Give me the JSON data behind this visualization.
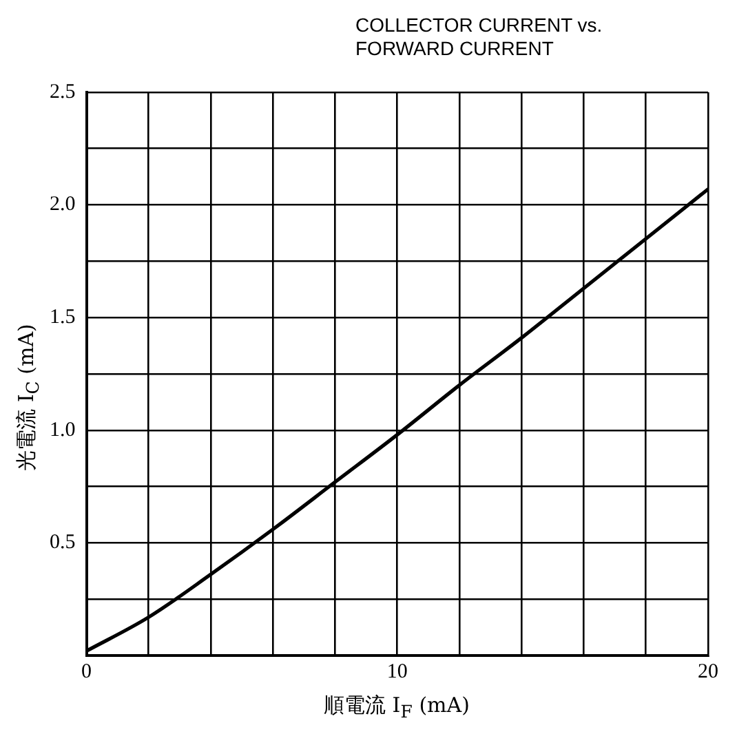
{
  "chart_data": {
    "type": "line",
    "title": "COLLECTOR CURRENT vs.\nFORWARD CURRENT",
    "xlabel": "順電流 I$_{F}$ (mA)",
    "ylabel": "光電流 I$_{C}$ (mA)",
    "x": [
      0,
      2,
      4,
      6,
      8,
      10,
      12,
      14,
      16,
      18,
      20
    ],
    "series": [
      {
        "color": "#000000",
        "values": [
          0.02,
          0.17,
          0.36,
          0.56,
          0.77,
          0.98,
          1.2,
          1.41,
          1.63,
          1.85,
          2.07
        ]
      }
    ],
    "xlim": [
      0,
      20
    ],
    "xticks": [
      0,
      {
        "value": 2,
        "label": null
      },
      {
        "value": 4,
        "label": null
      },
      {
        "value": 6,
        "label": null
      },
      {
        "value": 8,
        "label": null
      },
      10,
      {
        "value": 12,
        "label": null
      },
      {
        "value": 14,
        "label": null
      },
      {
        "value": 16,
        "label": null
      },
      {
        "value": 18,
        "label": null
      },
      20
    ],
    "ylim": [
      0,
      2.5
    ],
    "yticks": [
      {
        "value": 0,
        "label": null
      },
      {
        "value": 0.25,
        "label": null
      },
      {
        "value": 0.5,
        "label": "0.5"
      },
      {
        "value": 0.75,
        "label": null
      },
      {
        "value": 1,
        "label": "1.0"
      },
      {
        "value": 1.25,
        "label": null
      },
      {
        "value": 1.5,
        "label": "1.5"
      },
      {
        "value": 1.75,
        "label": null
      },
      {
        "value": 2,
        "label": "2.0"
      },
      {
        "value": 2.25,
        "label": null
      },
      {
        "value": 2.5,
        "label": "2.5"
      }
    ],
    "grid": true,
    "legend": false,
    "marker": "none",
    "line_style": "solid"
  }
}
